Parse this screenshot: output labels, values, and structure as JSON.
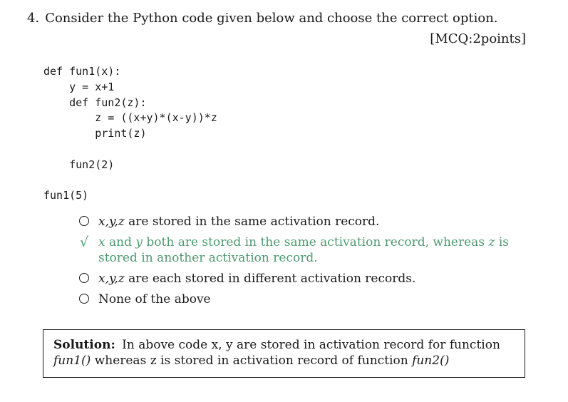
{
  "question": {
    "number": "4.",
    "text": "Consider the Python code given below and choose the correct option.",
    "points": "[MCQ:2points]"
  },
  "code_lines": [
    "def fun1(x):",
    "    y = x+1",
    "    def fun2(z):",
    "        z = ((x+y)*(x-y))*z",
    "        print(z)",
    "",
    "    fun2(2)",
    "",
    "fun1(5)"
  ],
  "options": [
    {
      "math": "x,y,z",
      "text": " are stored in the same activation record.",
      "correct": false
    },
    {
      "math_x": "x",
      "mid": " and ",
      "math_y": "y",
      "mid2": " both are stored in the same activation record, whereas ",
      "math_z": "z",
      "tail": " is stored in another activation record.",
      "correct": true
    },
    {
      "math": "x,y,z",
      "text": " are each stored in different activation records.",
      "correct": false
    },
    {
      "text": "None of the above",
      "correct": false
    }
  ],
  "solution": {
    "label": "Solution:",
    "text1": "In above code x, y are stored in activation record for function ",
    "fn1": "fun1()",
    "text2": "whereas z is stored in activation record of function ",
    "fn2": "fun2()"
  },
  "colors": {
    "text": "#1a1a1a",
    "correct": "#4c9a6f"
  }
}
